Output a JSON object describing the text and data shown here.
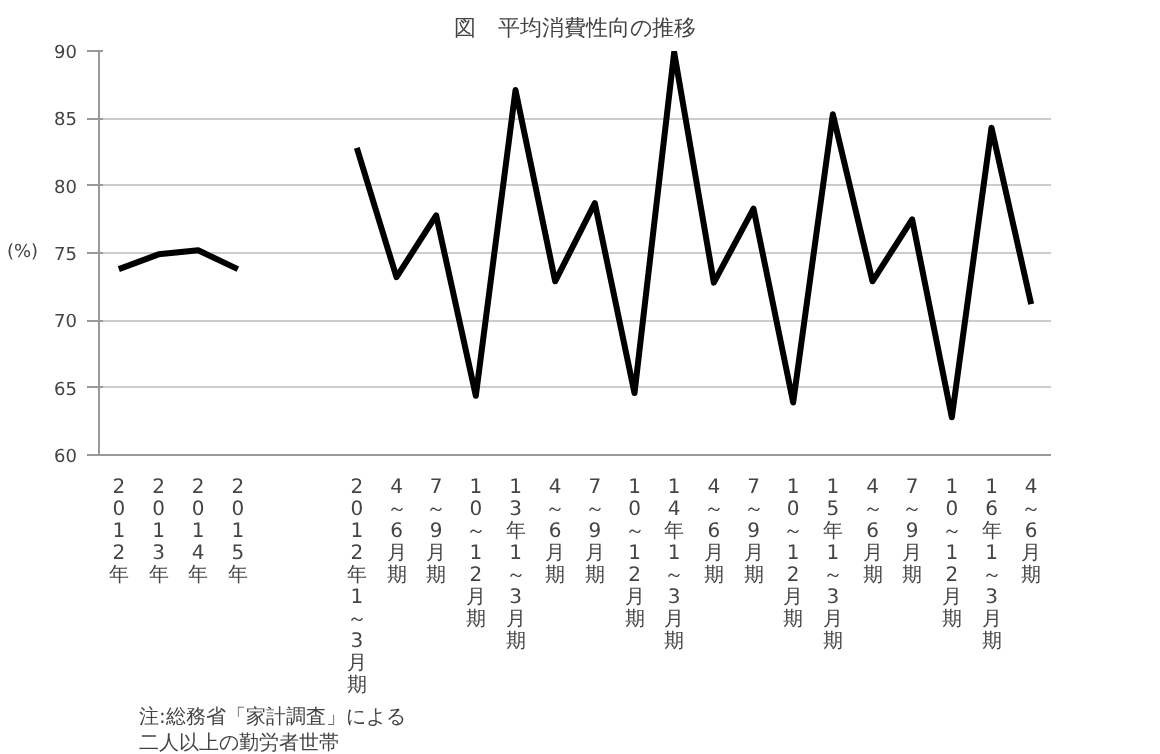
{
  "chart_data": {
    "type": "line",
    "title": "図　平均消費性向の推移",
    "ylabel": "(%)",
    "categories": [
      "2012年",
      "2013年",
      "2014年",
      "2015年",
      null,
      null,
      "2012年1～3月期",
      "4～6月期",
      "7～9月期",
      "10～12月期",
      "13年1～3月期",
      "4～6月期",
      "7～9月期",
      "10～12月期",
      "14年1～3月期",
      "4～6月期",
      "7～9月期",
      "10～12月期",
      "15年1～3月期",
      "4～6月期",
      "7～9月期",
      "10～12月期",
      "16年1～3月期",
      "4～6月期"
    ],
    "series": [
      {
        "color": "#000000",
        "values": [
          73.8,
          74.9,
          75.2,
          73.8,
          null,
          null,
          82.8,
          73.2,
          77.8,
          64.4,
          87.1,
          72.9,
          78.7,
          64.6,
          89.9,
          72.8,
          78.3,
          63.9,
          85.3,
          72.9,
          77.5,
          62.8,
          84.3,
          71.2
        ]
      }
    ],
    "ylim": [
      60,
      90
    ],
    "yticks": [
      60,
      65,
      70,
      75,
      80,
      85,
      90
    ],
    "grid": "y",
    "marker": "none",
    "line_style": "solid",
    "annotations": [
      "注:総務省「家計調査」による",
      "二人以上の勤労者世帯"
    ]
  }
}
